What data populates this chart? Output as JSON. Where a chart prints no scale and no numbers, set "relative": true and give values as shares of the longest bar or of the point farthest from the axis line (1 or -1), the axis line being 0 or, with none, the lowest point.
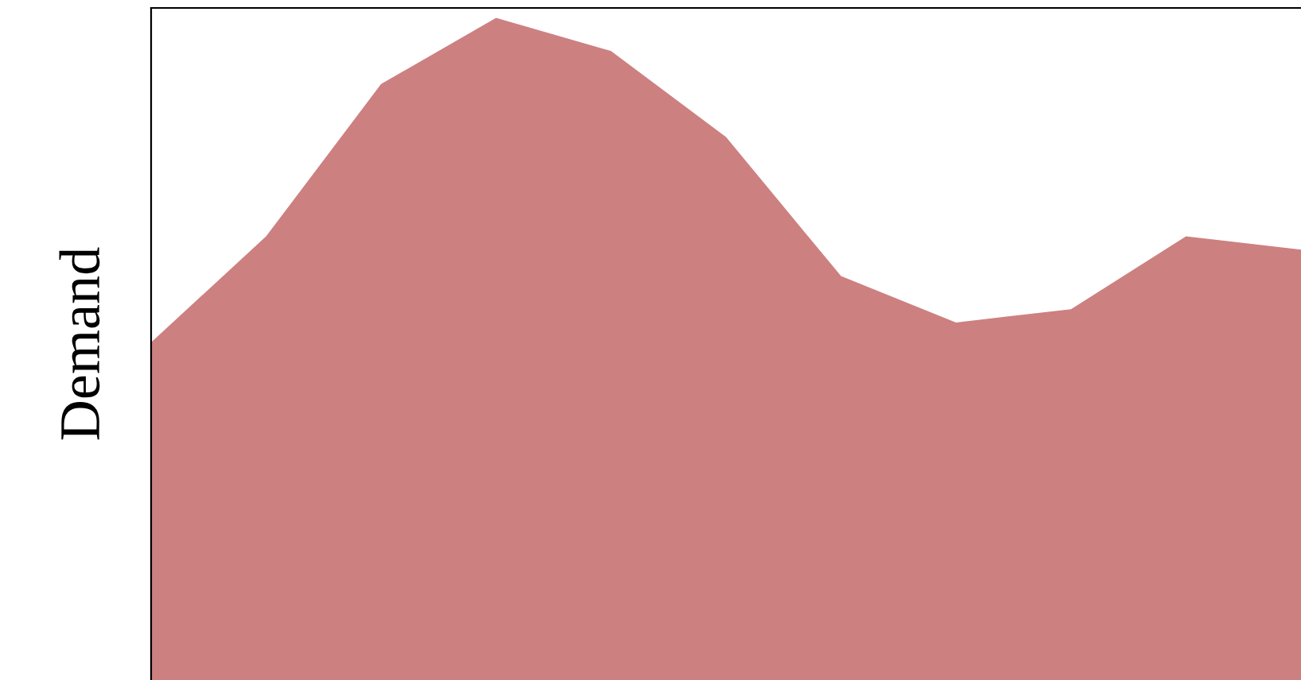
{
  "chart_data": {
    "type": "area",
    "ylabel": "Demand",
    "relative": true,
    "grid": false,
    "legend": false,
    "categories": [
      null,
      null,
      null,
      null,
      null,
      null,
      null,
      null,
      null,
      null,
      null
    ],
    "series": [
      {
        "color": "#cd8080",
        "values": [
          0.51,
          0.67,
          0.9,
          1.0,
          0.95,
          0.82,
          0.61,
          0.54,
          0.56,
          0.67,
          0.65
        ]
      }
    ]
  }
}
